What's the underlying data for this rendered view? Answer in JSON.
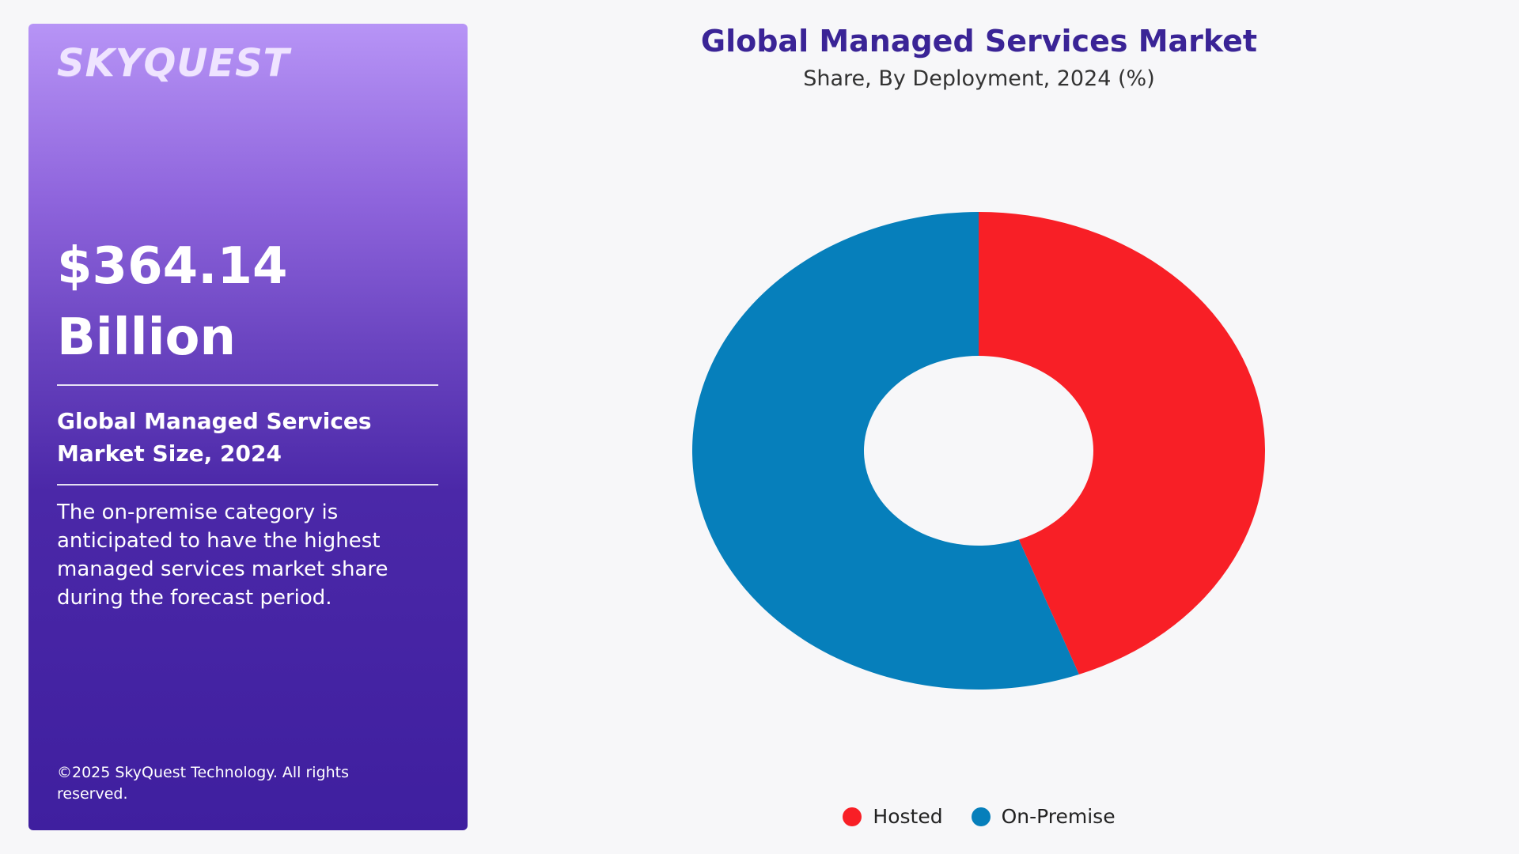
{
  "left_panel": {
    "brand": "SKYQUEST",
    "market_value_line1": "$364.14",
    "market_value_line2": "Billion",
    "size_label": "Global Managed Services Market Size, 2024",
    "description": "The on-premise category is anticipated to have the highest managed services market share during the forecast period.",
    "copyright": "©2025 SkyQuest Technology. All rights reserved."
  },
  "colors": {
    "hosted": "#f81f26",
    "on_premise": "#067fbb",
    "title": "#3a2496"
  },
  "chart_data": {
    "type": "pie",
    "variant": "donut",
    "title": "Global Managed Services Market",
    "subtitle": "Share, By Deployment, 2024 (%)",
    "categories": [
      "Hosted",
      "On-Premise"
    ],
    "values": [
      44.3,
      55.7
    ],
    "legend_position": "bottom-center"
  }
}
